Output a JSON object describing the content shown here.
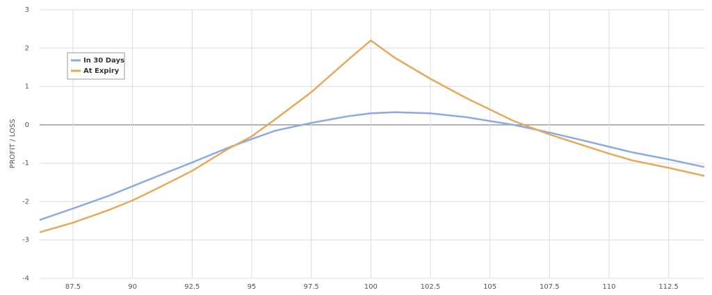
{
  "chart_data": {
    "type": "line",
    "y_label": "PROFIT / LOSS",
    "x": [
      86.1,
      87.5,
      89,
      90,
      91,
      92.5,
      94,
      95,
      96,
      97.5,
      99,
      100,
      101,
      102.5,
      104,
      105,
      106,
      107.5,
      109,
      110,
      111,
      112.5,
      114
    ],
    "series": [
      {
        "name": "In 30 Days",
        "color": "#8aaae5",
        "values": [
          -2.48,
          -2.18,
          -1.85,
          -1.6,
          -1.35,
          -0.98,
          -0.6,
          -0.37,
          -0.15,
          0.05,
          0.22,
          0.3,
          0.33,
          0.3,
          0.2,
          0.1,
          0.0,
          -0.2,
          -0.42,
          -0.57,
          -0.72,
          -0.9,
          -1.1
        ]
      },
      {
        "name": "At Expiry",
        "color": "#e8a85a",
        "values": [
          -2.8,
          -2.55,
          -2.22,
          -1.97,
          -1.67,
          -1.2,
          -0.63,
          -0.3,
          0.15,
          0.85,
          1.67,
          2.2,
          1.75,
          1.2,
          0.7,
          0.4,
          0.1,
          -0.25,
          -0.55,
          -0.75,
          -0.93,
          -1.12,
          -1.33
        ]
      }
    ],
    "xlim": [
      86.1,
      114
    ],
    "xticks": [
      87.5,
      90,
      92.5,
      95,
      97.5,
      100,
      102.5,
      105,
      107.5,
      110,
      112.5
    ],
    "ylim": [
      -4,
      3
    ],
    "yticks": [
      -4,
      -3,
      -2,
      -1,
      0,
      1,
      2,
      3
    ],
    "grid": true,
    "zero_line": true,
    "legend": "upper-left"
  }
}
